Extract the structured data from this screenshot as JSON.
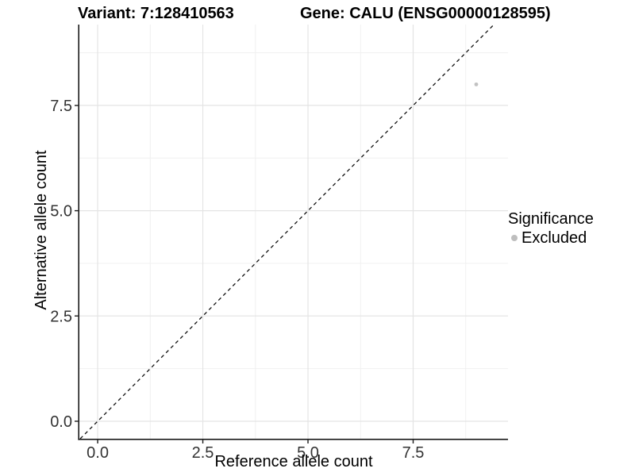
{
  "chart_data": {
    "type": "scatter",
    "title_left": "Variant: 7:128410563",
    "title_right": "Gene: CALU (ENSG00000128595)",
    "xlabel": "Reference allele count",
    "ylabel": "Alternative allele count",
    "xlim": [
      -0.435,
      9.755
    ],
    "ylim": [
      -0.415,
      9.42
    ],
    "x_major_ticks": [
      0,
      2.5,
      5,
      7.5
    ],
    "x_tick_labels": [
      "0.0",
      "2.5",
      "5.0",
      "7.5"
    ],
    "y_major_ticks": [
      0,
      2.5,
      5,
      7.5
    ],
    "y_tick_labels": [
      "0.0",
      "2.5",
      "5.0",
      "7.5"
    ],
    "x_minor_ticks": [
      1.25,
      3.75,
      6.25,
      8.75
    ],
    "y_minor_ticks": [
      1.25,
      3.75,
      6.25,
      8.75
    ],
    "grid": true,
    "reference_line": {
      "type": "identity",
      "slope": 1,
      "intercept": 0,
      "style": "dashed"
    },
    "points": [
      {
        "x": 9,
        "y": 8,
        "series": "Excluded"
      }
    ],
    "legend": {
      "title": "Significance",
      "position": "right",
      "entries": [
        {
          "label": "Excluded",
          "color": "#bebebe"
        }
      ]
    },
    "colors": {
      "point": "#c2c2c2",
      "grid_major": "#e4e4e4",
      "grid_minor": "#f0f0f0",
      "axis": "#1a1a1a",
      "tick_text": "#333333",
      "dashed_line": "#111111"
    }
  }
}
